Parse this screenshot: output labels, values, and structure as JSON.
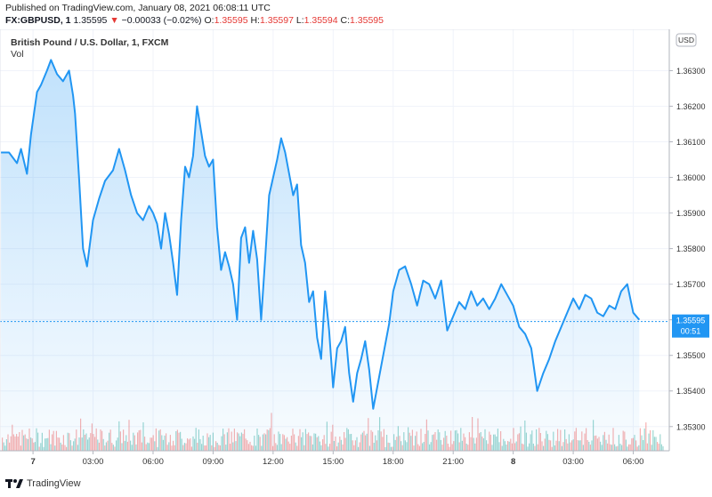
{
  "header": {
    "published": "Published on TradingView.com, January 08, 2021 06:08:11 UTC",
    "symbol": "FX:GBPUSD, 1",
    "last": "1.35595",
    "arrow": "▼",
    "change": "−0.00033 (−0.02%)",
    "open_label": "O:",
    "open": "1.35595",
    "high_label": "H:",
    "high": "1.35597",
    "low_label": "L:",
    "low": "1.35594",
    "close_label": "C:",
    "close": "1.35595"
  },
  "legend": {
    "title": "British Pound / U.S. Dollar, 1, FXCM",
    "volume": "Vol"
  },
  "footer": {
    "brand": "TradingView"
  },
  "colors": {
    "line": "#2196f3",
    "up_volume": "#26a69a",
    "down_volume": "#ef5350",
    "price_badge": "#2196f3",
    "grid": "#f0f3fa"
  },
  "chart_data": {
    "type": "line",
    "title": "British Pound / U.S. Dollar, 1, FXCM",
    "currency": "USD",
    "y_ticks": [
      1.353,
      1.354,
      1.355,
      1.356,
      1.357,
      1.358,
      1.359,
      1.36,
      1.361,
      1.362,
      1.363
    ],
    "y_tick_labels": [
      "1.35300",
      "1.35400",
      "1.35500",
      "1.35600",
      "1.35700",
      "1.35800",
      "1.35900",
      "1.36000",
      "1.36100",
      "1.36200",
      "1.36300"
    ],
    "ylim": [
      1.35232,
      1.36416
    ],
    "x_ticks": [
      {
        "label": "7",
        "x": 0.0
      },
      {
        "label": "03:00",
        "x": 3.0
      },
      {
        "label": "06:00",
        "x": 6.0
      },
      {
        "label": "09:00",
        "x": 9.0
      },
      {
        "label": "12:00",
        "x": 12.0
      },
      {
        "label": "15:00",
        "x": 15.0
      },
      {
        "label": "18:00",
        "x": 18.0
      },
      {
        "label": "21:00",
        "x": 21.0
      },
      {
        "label": "8",
        "x": 24.0
      },
      {
        "label": "03:00",
        "x": 27.0
      },
      {
        "label": "06:00",
        "x": 30.0
      }
    ],
    "xlim": [
      -1.65,
      31.8
    ],
    "last_value": 1.35595,
    "last_value_label": "1.35595",
    "countdown_label": "00:51",
    "grid": true,
    "x": [
      -1.6,
      -1.2,
      -0.8,
      -0.6,
      -0.3,
      -0.1,
      0.2,
      0.4,
      0.7,
      0.9,
      1.2,
      1.5,
      1.8,
      2.0,
      2.1,
      2.3,
      2.5,
      2.7,
      3.0,
      3.3,
      3.6,
      4.0,
      4.3,
      4.6,
      4.9,
      5.2,
      5.5,
      5.8,
      6.0,
      6.2,
      6.4,
      6.6,
      6.8,
      7.0,
      7.2,
      7.4,
      7.6,
      7.8,
      8.0,
      8.2,
      8.4,
      8.6,
      8.8,
      9.0,
      9.2,
      9.4,
      9.6,
      9.8,
      10.0,
      10.2,
      10.4,
      10.6,
      10.8,
      11.0,
      11.2,
      11.4,
      11.6,
      11.8,
      12.0,
      12.2,
      12.4,
      12.6,
      12.8,
      13.0,
      13.2,
      13.4,
      13.6,
      13.8,
      14.0,
      14.2,
      14.4,
      14.6,
      14.8,
      15.0,
      15.2,
      15.4,
      15.6,
      15.8,
      16.0,
      16.2,
      16.4,
      16.6,
      16.8,
      17.0,
      17.2,
      17.4,
      17.6,
      17.8,
      18.0,
      18.3,
      18.6,
      18.9,
      19.2,
      19.5,
      19.8,
      20.1,
      20.4,
      20.7,
      21.0,
      21.3,
      21.6,
      21.9,
      22.2,
      22.5,
      22.8,
      23.1,
      23.4,
      23.7,
      24.0,
      24.3,
      24.6,
      24.9,
      25.2,
      25.5,
      25.8,
      26.1,
      26.4,
      26.7,
      27.0,
      27.3,
      27.6,
      27.9,
      28.2,
      28.5,
      28.8,
      29.1,
      29.4,
      29.7,
      30.0,
      30.3
    ],
    "y": [
      1.3607,
      1.3607,
      1.3604,
      1.3608,
      1.3601,
      1.3612,
      1.3624,
      1.3626,
      1.363,
      1.3633,
      1.3629,
      1.3627,
      1.363,
      1.3623,
      1.3618,
      1.36,
      1.358,
      1.3575,
      1.3588,
      1.3594,
      1.3599,
      1.3602,
      1.3608,
      1.3602,
      1.3595,
      1.359,
      1.3588,
      1.3592,
      1.359,
      1.3587,
      1.358,
      1.359,
      1.3584,
      1.3576,
      1.3567,
      1.3588,
      1.3603,
      1.36,
      1.3606,
      1.362,
      1.3613,
      1.3606,
      1.3603,
      1.3605,
      1.3586,
      1.3574,
      1.3579,
      1.3575,
      1.357,
      1.356,
      1.3583,
      1.3586,
      1.3576,
      1.3585,
      1.3577,
      1.356,
      1.3577,
      1.3595,
      1.36,
      1.3605,
      1.3611,
      1.3607,
      1.3601,
      1.3595,
      1.3598,
      1.3581,
      1.3576,
      1.3565,
      1.3568,
      1.3555,
      1.3549,
      1.3568,
      1.3557,
      1.3541,
      1.3552,
      1.3554,
      1.3558,
      1.3545,
      1.3537,
      1.3545,
      1.3549,
      1.3554,
      1.3546,
      1.3535,
      1.3541,
      1.3547,
      1.3553,
      1.3559,
      1.3568,
      1.3574,
      1.3575,
      1.357,
      1.3564,
      1.3571,
      1.357,
      1.3566,
      1.3571,
      1.3557,
      1.3561,
      1.3565,
      1.3563,
      1.3568,
      1.3564,
      1.3566,
      1.3563,
      1.3566,
      1.357,
      1.3567,
      1.3564,
      1.3558,
      1.3556,
      1.3552,
      1.354,
      1.3545,
      1.3549,
      1.3554,
      1.3558,
      1.3562,
      1.3566,
      1.3563,
      1.3567,
      1.3566,
      1.3562,
      1.3561,
      1.3564,
      1.3563,
      1.3568,
      1.357,
      1.3562,
      1.356
    ]
  }
}
